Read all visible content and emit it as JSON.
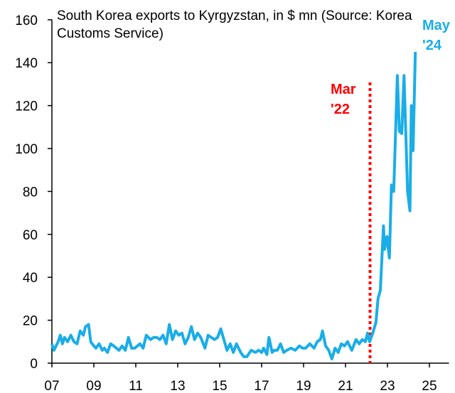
{
  "chart_data": {
    "type": "line",
    "title": "South Korea exports to Kyrgyzstan, in $ mn (Source: Korea Customs Service)",
    "xlabel": "",
    "ylabel": "",
    "xlim": [
      2007,
      2026
    ],
    "ylim": [
      0,
      160
    ],
    "x_ticks": [
      2007,
      2009,
      2011,
      2013,
      2015,
      2017,
      2019,
      2021,
      2023,
      2025
    ],
    "x_tick_labels": [
      "07",
      "09",
      "11",
      "13",
      "15",
      "17",
      "19",
      "21",
      "23",
      "25"
    ],
    "y_ticks": [
      0,
      20,
      40,
      60,
      80,
      100,
      120,
      140,
      160
    ],
    "y_tick_labels": [
      "0",
      "20",
      "40",
      "60",
      "80",
      "100",
      "120",
      "140",
      "160"
    ],
    "grid": false,
    "series": [
      {
        "name": "South Korea exports to Kyrgyzstan",
        "color": "#1AADE8",
        "x": [
          2007.0,
          2007.1,
          2007.3,
          2007.4,
          2007.5,
          2007.6,
          2007.75,
          2007.9,
          2008.05,
          2008.2,
          2008.35,
          2008.5,
          2008.6,
          2008.75,
          2008.85,
          2009.0,
          2009.1,
          2009.25,
          2009.4,
          2009.5,
          2009.65,
          2009.8,
          2009.95,
          2010.2,
          2010.35,
          2010.5,
          2010.65,
          2010.8,
          2010.95,
          2011.2,
          2011.35,
          2011.5,
          2011.7,
          2011.85,
          2012.0,
          2012.15,
          2012.3,
          2012.45,
          2012.6,
          2012.75,
          2012.9,
          2013.05,
          2013.2,
          2013.35,
          2013.5,
          2013.65,
          2013.8,
          2013.95,
          2014.1,
          2014.3,
          2014.45,
          2014.6,
          2014.75,
          2014.9,
          2015.05,
          2015.2,
          2015.35,
          2015.5,
          2015.65,
          2015.8,
          2016.0,
          2016.15,
          2016.3,
          2016.5,
          2016.7,
          2016.85,
          2017.0,
          2017.1,
          2017.25,
          2017.35,
          2017.5,
          2017.6,
          2017.75,
          2017.9,
          2018.05,
          2018.2,
          2018.4,
          2018.6,
          2018.8,
          2018.95,
          2019.1,
          2019.3,
          2019.5,
          2019.65,
          2019.8,
          2019.9,
          2020.05,
          2020.2,
          2020.35,
          2020.5,
          2020.65,
          2020.8,
          2020.95,
          2021.1,
          2021.3,
          2021.5,
          2021.65,
          2021.8,
          2021.95,
          2022.05,
          2022.15,
          2022.3,
          2022.45,
          2022.55,
          2022.66,
          2022.81,
          2022.86,
          2022.98,
          2023.09,
          2023.19,
          2023.3,
          2023.47,
          2023.57,
          2023.68,
          2023.79,
          2023.96,
          2024.07,
          2024.14,
          2024.22,
          2024.33
        ],
        "y": [
          9,
          6,
          10,
          13,
          9,
          12,
          10,
          13,
          10,
          9,
          15,
          13,
          17,
          18,
          10,
          8,
          7,
          9,
          6,
          7,
          5,
          9,
          8,
          6,
          8,
          6,
          12,
          7,
          7,
          9,
          7,
          13,
          11,
          12,
          12,
          11,
          13,
          9,
          18,
          11,
          15,
          13,
          14,
          9,
          12,
          17,
          11,
          14,
          12,
          7,
          13,
          12,
          11,
          12,
          16,
          11,
          6,
          9,
          5,
          9,
          5,
          3,
          3,
          6,
          5,
          6,
          5,
          7,
          4,
          12,
          5,
          6,
          6,
          9,
          5,
          6,
          7,
          6,
          8,
          7,
          7,
          9,
          7,
          10,
          11,
          15,
          8,
          6,
          2,
          7,
          5,
          9,
          8,
          10,
          6,
          11,
          9,
          11,
          10,
          14,
          10,
          14,
          19,
          30,
          34,
          64,
          53,
          59,
          49,
          83,
          80,
          134,
          108,
          107,
          134,
          80,
          71,
          120,
          99,
          145
        ]
      }
    ],
    "annotations": [
      {
        "label_line1": "Mar",
        "label_line2": "'22",
        "x": 2022.17,
        "color": "#FF0000",
        "style": "dotted-vertical-line"
      },
      {
        "label_line1": "May",
        "label_line2": "'24",
        "x": 2024.33,
        "color": "#1AADE8"
      }
    ]
  }
}
